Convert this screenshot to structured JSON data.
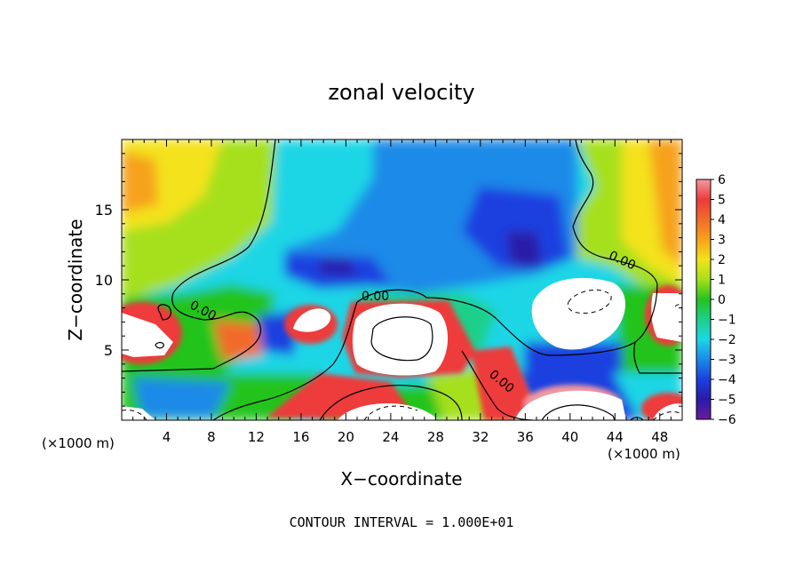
{
  "chart_data": {
    "type": "heatmap",
    "title": "zonal velocity",
    "xlabel": "X−coordinate",
    "ylabel": "Z−coordinate",
    "x_unit_left": "(×1000 m)",
    "x_unit_right": "(×1000 m)",
    "xlim": [
      0,
      50
    ],
    "ylim": [
      0,
      20
    ],
    "x_ticks": [
      4,
      8,
      12,
      16,
      20,
      24,
      28,
      32,
      36,
      40,
      44,
      48
    ],
    "y_ticks": [
      5,
      10,
      15
    ],
    "colorbar": {
      "min": -6,
      "max": 6,
      "ticks": [
        "6",
        "5",
        "4",
        "3",
        "2",
        "1",
        "0",
        "−1",
        "−2",
        "−3",
        "−4",
        "−5",
        "−6"
      ]
    },
    "contour_labels": [
      "0.00",
      "0.00",
      "0.00",
      "0.00"
    ],
    "footer": "CONTOUR INTERVAL = 1.000E+01",
    "colors": {
      "v6": "#f39aa0",
      "v5": "#ee3b3b",
      "v4": "#f26b2b",
      "v3": "#f6a21a",
      "v2": "#f4e21a",
      "v1": "#a6e01a",
      "v0": "#22c41e",
      "vm1": "#1dd08a",
      "vm2": "#1cd6e6",
      "vm3": "#1b8ae8",
      "vm4": "#1b3fe0",
      "vm5": "#2a1ba8",
      "vm6": "#6a1b9e",
      "saturated": "#ffffff"
    }
  }
}
